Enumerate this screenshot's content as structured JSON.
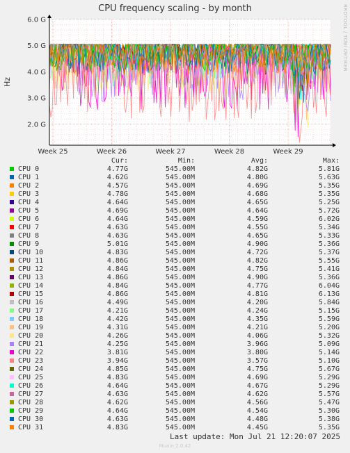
{
  "chart_data": {
    "type": "line",
    "title": "CPU frequency scaling - by month",
    "ylabel": "Hz",
    "ylim": [
      1200000000.0,
      6000000000.0
    ],
    "y_ticks": [
      "2.0 G",
      "3.0 G",
      "4.0 G",
      "5.0 G",
      "6.0 G"
    ],
    "x_ticks": [
      "Week 25",
      "Week 26",
      "Week 27",
      "Week 28",
      "Week 29"
    ],
    "grid": true,
    "legend_headers": [
      "Cur:",
      "Min:",
      "Avg:",
      "Max:"
    ],
    "series": [
      {
        "name": "CPU 0",
        "color": "#00cc00",
        "cur": "4.77G",
        "min": "545.00M",
        "avg": "4.82G",
        "max": "5.81G"
      },
      {
        "name": "CPU 1",
        "color": "#0066b3",
        "cur": "4.62G",
        "min": "545.00M",
        "avg": "4.80G",
        "max": "5.63G"
      },
      {
        "name": "CPU 2",
        "color": "#ff8000",
        "cur": "4.57G",
        "min": "545.00M",
        "avg": "4.69G",
        "max": "5.35G"
      },
      {
        "name": "CPU 3",
        "color": "#ffcc00",
        "cur": "4.78G",
        "min": "545.00M",
        "avg": "4.68G",
        "max": "5.35G"
      },
      {
        "name": "CPU 4",
        "color": "#330099",
        "cur": "4.64G",
        "min": "545.00M",
        "avg": "4.65G",
        "max": "5.25G"
      },
      {
        "name": "CPU 5",
        "color": "#990099",
        "cur": "4.69G",
        "min": "545.00M",
        "avg": "4.64G",
        "max": "5.72G"
      },
      {
        "name": "CPU 6",
        "color": "#ccff00",
        "cur": "4.64G",
        "min": "545.00M",
        "avg": "4.59G",
        "max": "6.02G"
      },
      {
        "name": "CPU 7",
        "color": "#ff0000",
        "cur": "4.63G",
        "min": "545.00M",
        "avg": "4.55G",
        "max": "5.34G"
      },
      {
        "name": "CPU 8",
        "color": "#808080",
        "cur": "4.63G",
        "min": "545.00M",
        "avg": "4.65G",
        "max": "5.33G"
      },
      {
        "name": "CPU 9",
        "color": "#008f00",
        "cur": "5.01G",
        "min": "545.00M",
        "avg": "4.90G",
        "max": "5.36G"
      },
      {
        "name": "CPU 10",
        "color": "#00487d",
        "cur": "4.83G",
        "min": "545.00M",
        "avg": "4.72G",
        "max": "5.37G"
      },
      {
        "name": "CPU 11",
        "color": "#b35a00",
        "cur": "4.86G",
        "min": "545.00M",
        "avg": "4.82G",
        "max": "5.55G"
      },
      {
        "name": "CPU 12",
        "color": "#b38f00",
        "cur": "4.84G",
        "min": "545.00M",
        "avg": "4.75G",
        "max": "5.41G"
      },
      {
        "name": "CPU 13",
        "color": "#6b006b",
        "cur": "4.86G",
        "min": "545.00M",
        "avg": "4.90G",
        "max": "5.36G"
      },
      {
        "name": "CPU 14",
        "color": "#8fb300",
        "cur": "4.84G",
        "min": "545.00M",
        "avg": "4.77G",
        "max": "6.04G"
      },
      {
        "name": "CPU 15",
        "color": "#b30000",
        "cur": "4.86G",
        "min": "545.00M",
        "avg": "4.81G",
        "max": "6.13G"
      },
      {
        "name": "CPU 16",
        "color": "#bebebe",
        "cur": "4.49G",
        "min": "545.00M",
        "avg": "4.20G",
        "max": "5.84G"
      },
      {
        "name": "CPU 17",
        "color": "#80ff80",
        "cur": "4.21G",
        "min": "545.00M",
        "avg": "4.24G",
        "max": "5.15G"
      },
      {
        "name": "CPU 18",
        "color": "#80c9ff",
        "cur": "4.42G",
        "min": "545.00M",
        "avg": "4.35G",
        "max": "5.59G"
      },
      {
        "name": "CPU 19",
        "color": "#ffc080",
        "cur": "4.31G",
        "min": "545.00M",
        "avg": "4.21G",
        "max": "5.20G"
      },
      {
        "name": "CPU 20",
        "color": "#ffe680",
        "cur": "4.26G",
        "min": "545.00M",
        "avg": "4.06G",
        "max": "5.32G"
      },
      {
        "name": "CPU 21",
        "color": "#aa80ff",
        "cur": "4.25G",
        "min": "545.00M",
        "avg": "3.96G",
        "max": "5.09G"
      },
      {
        "name": "CPU 22",
        "color": "#ee00cc",
        "cur": "3.81G",
        "min": "545.00M",
        "avg": "3.80G",
        "max": "5.14G"
      },
      {
        "name": "CPU 23",
        "color": "#ff8080",
        "cur": "3.94G",
        "min": "545.00M",
        "avg": "3.57G",
        "max": "5.10G"
      },
      {
        "name": "CPU 24",
        "color": "#666600",
        "cur": "4.85G",
        "min": "545.00M",
        "avg": "4.75G",
        "max": "5.67G"
      },
      {
        "name": "CPU 25",
        "color": "#ffbfff",
        "cur": "4.83G",
        "min": "545.00M",
        "avg": "4.69G",
        "max": "5.29G"
      },
      {
        "name": "CPU 26",
        "color": "#00ffcc",
        "cur": "4.64G",
        "min": "545.00M",
        "avg": "4.67G",
        "max": "5.29G"
      },
      {
        "name": "CPU 27",
        "color": "#cc6699",
        "cur": "4.63G",
        "min": "545.00M",
        "avg": "4.62G",
        "max": "5.57G"
      },
      {
        "name": "CPU 28",
        "color": "#999900",
        "cur": "4.62G",
        "min": "545.00M",
        "avg": "4.56G",
        "max": "5.47G"
      },
      {
        "name": "CPU 29",
        "color": "#00cc00",
        "cur": "4.64G",
        "min": "545.00M",
        "avg": "4.54G",
        "max": "5.30G"
      },
      {
        "name": "CPU 30",
        "color": "#0066b3",
        "cur": "4.63G",
        "min": "545.00M",
        "avg": "4.48G",
        "max": "5.38G"
      },
      {
        "name": "CPU 31",
        "color": "#ff8000",
        "cur": "4.83G",
        "min": "545.00M",
        "avg": "4.45G",
        "max": "5.35G"
      }
    ]
  },
  "side_label": "RRDTOOL / TOBI OETIKER",
  "last_update": "Last update: Mon Jul 21 12:20:07 2025",
  "footer": "Munin 2.0.42"
}
